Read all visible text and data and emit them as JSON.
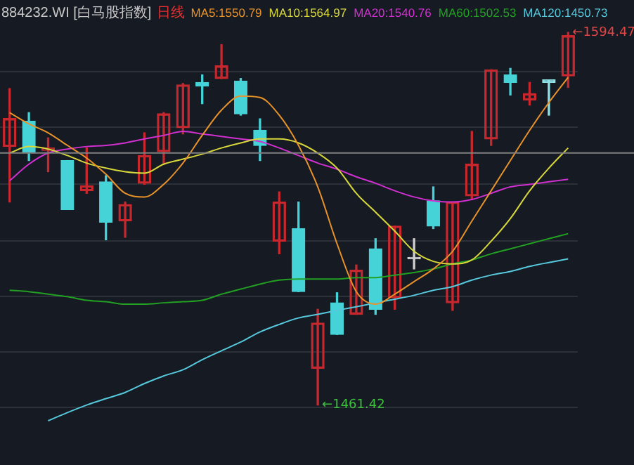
{
  "chart_data": {
    "type": "candlestick",
    "title": "884232.WI [白马股指数]",
    "subtitle": "日线",
    "categories": [
      null,
      null,
      null,
      null,
      null,
      null,
      null,
      null,
      null,
      null,
      null,
      null,
      null,
      null,
      null,
      null,
      null,
      null,
      null,
      null,
      null,
      null,
      null,
      null,
      null,
      null,
      null,
      null,
      null,
      null
    ],
    "yticks": [
      {
        "value": 1460.5,
        "label": null
      },
      {
        "value": 1480.4,
        "label": null
      },
      {
        "value": 1500.2,
        "label": null
      },
      {
        "value": 1520.0,
        "label": null
      },
      {
        "value": 1540.3,
        "label": null
      },
      {
        "value": 1560.6,
        "label": null
      },
      {
        "value": 1580.5,
        "label": null
      }
    ],
    "grid": "y",
    "tick_labels": false,
    "legend": "top right",
    "marker": "none",
    "line_style": "solid",
    "ref_lines": [
      {
        "axis": "y",
        "value": 1551.4,
        "color": "#7f7f7f"
      }
    ],
    "annotations": [
      "←1594.47",
      "←1461.42"
    ],
    "series": [
      {
        "ohlc": [
          [
            1553.7,
            1574.4,
            1533.9,
            1563.7
          ],
          [
            1562.8,
            1565.8,
            1548.7,
            1551.5
          ],
          [
            1552.3,
            1556.8,
            1544.7,
            1553.2
          ],
          [
            1548.7,
            1548.7,
            1531.2,
            1531.2
          ],
          [
            1537.9,
            1553.2,
            1537.0,
            1539.7
          ],
          [
            1541.1,
            1543.3,
            1520.4,
            1526.7
          ],
          [
            1527.1,
            1533.9,
            1521.3,
            1533.0
          ],
          [
            1540.6,
            1558.6,
            1540.2,
            1550.5
          ],
          [
            1551.9,
            1565.8,
            1547.4,
            1565.4
          ],
          [
            1560.4,
            1576.2,
            1558.2,
            1575.7
          ],
          [
            1576.6,
            1579.3,
            1569.0,
            1575.3
          ],
          [
            1578.0,
            1590.1,
            1578.0,
            1582.5
          ],
          [
            1577.1,
            1578.0,
            1564.9,
            1565.4
          ],
          [
            1559.5,
            1563.6,
            1548.7,
            1554.1
          ],
          [
            1519.9,
            1537.5,
            1515.4,
            1533.9
          ],
          [
            1524.4,
            1533.9,
            1501.9,
            1501.9
          ],
          [
            1474.5,
            1495.6,
            1461.42,
            1490.7
          ],
          [
            1497.9,
            1501.5,
            1486.6,
            1486.6
          ],
          [
            1493.8,
            1511.4,
            1493.8,
            1509.6
          ],
          [
            1517.2,
            1520.8,
            1493.8,
            1495.6
          ],
          [
            1499.7,
            1525.3,
            1495.6,
            1525.3
          ],
          [
            1513.6,
            1520.8,
            1510.0,
            1513.6
          ],
          [
            1534.3,
            1539.3,
            1524.4,
            1525.3
          ],
          [
            1497.9,
            1533.9,
            1495.2,
            1533.9
          ],
          [
            1536.1,
            1559.1,
            1534.8,
            1547.4
          ],
          [
            1556.4,
            1581.1,
            1554.1,
            1581.1
          ],
          [
            1579.3,
            1581.6,
            1572.1,
            1576.6
          ],
          [
            1570.3,
            1576.6,
            1568.5,
            1572.6
          ],
          [
            1577.5,
            1577.5,
            1564.9,
            1576.6
          ],
          [
            1578.9,
            1594.47,
            1574.8,
            1593.3
          ]
        ],
        "colors": [
          "#c8282d",
          "#45d3d8",
          "#c8282d",
          "#45d3d8",
          "#c8282d",
          "#45d3d8",
          "#c8282d",
          "#c8282d",
          "#c8282d",
          "#c8282d",
          "#45d3d8",
          "#c8282d",
          "#45d3d8",
          "#45d3d8",
          "#c8282d",
          "#45d3d8",
          "#c8282d",
          "#45d3d8",
          "#c8282d",
          "#45d3d8",
          "#c8282d",
          "#d0d0d0",
          "#45d3d8",
          "#c8282d",
          "#c8282d",
          "#c8282d",
          "#45d3d8",
          "#c8282d",
          "#8fe3e6",
          "#c8282d"
        ]
      },
      {
        "type": "line",
        "name": "MA5:1550.79",
        "color": "#e8922a",
        "values": [
          1565.8,
          1561.8,
          1558.6,
          1554.1,
          1549.6,
          1543.8,
          1537.0,
          1535.7,
          1540.2,
          1547.8,
          1557.7,
          1566.7,
          1571.7,
          1571.2,
          1564.9,
          1554.1,
          1539.3,
          1519.0,
          1501.9,
          1497.4,
          1501.0,
          1505.5,
          1510.0,
          1516.3,
          1527.1,
          1537.9,
          1548.7,
          1559.5,
          1569.4,
          1578.4
        ]
      },
      {
        "type": "line",
        "name": "MA10:1564.97",
        "color": "#d8d83a",
        "values": [
          1551.4,
          1553.7,
          1552.8,
          1550.5,
          1547.8,
          1546.0,
          1544.7,
          1544.2,
          1547.4,
          1549.2,
          1551.0,
          1553.2,
          1555.0,
          1556.4,
          1556.4,
          1555.0,
          1551.4,
          1546.0,
          1537.0,
          1530.3,
          1523.5,
          1516.3,
          1512.7,
          1511.8,
          1513.2,
          1519.9,
          1528.0,
          1537.9,
          1546.0,
          1553.2
        ]
      },
      {
        "type": "line",
        "name": "MA20:1540.76",
        "color": "#d030d0",
        "values": [
          1541.5,
          1547.4,
          1551.4,
          1552.8,
          1553.7,
          1554.1,
          1555.0,
          1556.4,
          1557.7,
          1559.1,
          1558.2,
          1557.3,
          1556.4,
          1555.5,
          1553.2,
          1550.5,
          1547.8,
          1545.6,
          1542.9,
          1540.6,
          1537.9,
          1535.7,
          1534.3,
          1533.9,
          1534.8,
          1537.0,
          1539.3,
          1540.2,
          1541.1,
          1542.0
        ]
      },
      {
        "type": "line",
        "name": "MA60:1502.53",
        "color": "#22a022",
        "values": [
          1502.4,
          1501.9,
          1501.0,
          1500.1,
          1498.8,
          1498.3,
          1497.4,
          1497.4,
          1497.9,
          1498.3,
          1498.8,
          1501.0,
          1502.8,
          1504.6,
          1506.0,
          1506.4,
          1506.4,
          1506.4,
          1506.9,
          1506.9,
          1507.8,
          1508.7,
          1510.0,
          1511.8,
          1513.2,
          1515.4,
          1517.2,
          1519.0,
          1520.8,
          1522.6
        ]
      },
      {
        "type": "line",
        "name": "MA120:1450.73",
        "color": "#56c8dc",
        "values": [
          null,
          null,
          1455.8,
          1458.7,
          1461.4,
          1463.7,
          1465.9,
          1469.1,
          1471.8,
          1474.0,
          1477.6,
          1480.8,
          1483.9,
          1487.5,
          1490.2,
          1492.5,
          1493.8,
          1495.2,
          1496.5,
          1497.9,
          1499.2,
          1500.6,
          1502.4,
          1503.7,
          1506.0,
          1507.8,
          1509.1,
          1510.9,
          1512.3,
          1513.6
        ]
      }
    ]
  }
}
